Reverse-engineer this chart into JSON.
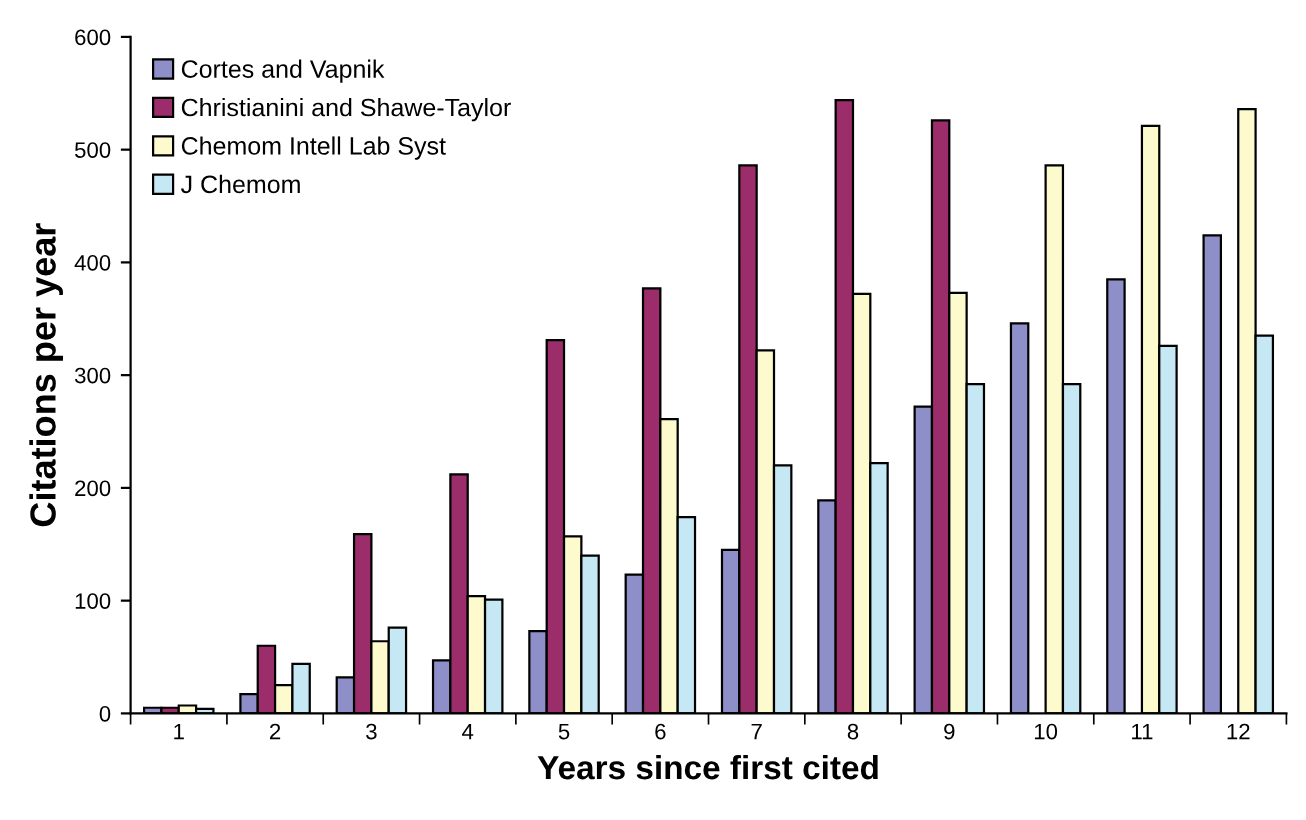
{
  "chart_data": {
    "type": "bar",
    "xlabel": "Years since first cited",
    "ylabel": "Citations per year",
    "categories": [
      "1",
      "2",
      "3",
      "4",
      "5",
      "6",
      "7",
      "8",
      "9",
      "10",
      "11",
      "12"
    ],
    "series": [
      {
        "name": "Cortes and Vapnik",
        "color": "#8e8fc8",
        "values": [
          5,
          17,
          32,
          47,
          73,
          123,
          145,
          189,
          272,
          346,
          385,
          424
        ]
      },
      {
        "name": "Christianini and Shawe-Taylor",
        "color": "#9b2d6a",
        "values": [
          5,
          60,
          159,
          212,
          331,
          377,
          486,
          544,
          526,
          null,
          null,
          null
        ]
      },
      {
        "name": "Chemom Intell Lab Syst",
        "color": "#fdfacd",
        "values": [
          7,
          25,
          64,
          104,
          157,
          261,
          322,
          372,
          373,
          486,
          521,
          536
        ]
      },
      {
        "name": "J Chemom",
        "color": "#c5e8f4",
        "values": [
          4,
          44,
          76,
          101,
          140,
          174,
          220,
          222,
          292,
          292,
          326,
          335
        ]
      }
    ],
    "ylim": [
      0,
      600
    ],
    "yticks": [
      0,
      100,
      200,
      300,
      400,
      500,
      600
    ],
    "grid": false,
    "legend": "top left"
  }
}
